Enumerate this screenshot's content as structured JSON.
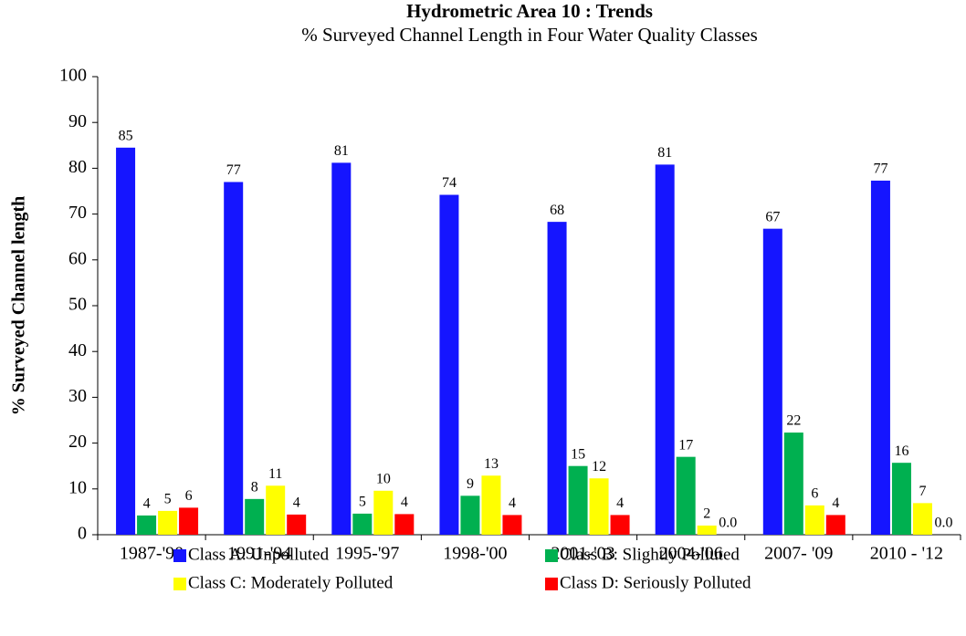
{
  "chart_data": {
    "type": "bar",
    "title": "Hydrometric Area 10 : Trends",
    "subtitle": "% Surveyed Channel Length in Four Water Quality Classes",
    "y_label": "% Surveyed Channel length",
    "categories": [
      "1987-'90",
      "1991-'94",
      "1995-'97",
      "1998-'00",
      "2001-'03",
      "2004-'06",
      "2007- '09",
      "2010 - '12"
    ],
    "series": [
      {
        "name": "Class A: Unpolluted",
        "color": "#1515ff",
        "values": [
          84.5,
          77,
          81.2,
          74.2,
          68.3,
          80.8,
          66.8,
          77.3
        ],
        "value_labels": [
          "85",
          "77",
          "81",
          "74",
          "68",
          "81",
          "67",
          "77"
        ]
      },
      {
        "name": "Class B: Slightly Polluted",
        "color": "#00b050",
        "values": [
          4.2,
          7.8,
          4.6,
          8.5,
          15,
          17,
          22.3,
          15.7
        ],
        "value_labels": [
          "4",
          "8",
          "5",
          "9",
          "15",
          "17",
          "22",
          "16"
        ]
      },
      {
        "name": "Class C: Moderately Polluted",
        "color": "#ffff00",
        "values": [
          5.2,
          10.7,
          9.6,
          12.9,
          12.3,
          2,
          6.4,
          6.9
        ],
        "value_labels": [
          "5",
          "11",
          "10",
          "13",
          "12",
          "2",
          "6",
          "7"
        ]
      },
      {
        "name": "Class D: Seriously Polluted",
        "color": "#ff0000",
        "values": [
          5.9,
          4.4,
          4.5,
          4.3,
          4.3,
          0,
          4.3,
          0
        ],
        "value_labels": [
          "6",
          "4",
          "4",
          "4",
          "4",
          "0.0",
          "4",
          "0.0"
        ]
      }
    ],
    "ylim": [
      0,
      100
    ],
    "yticks": [
      0,
      10,
      20,
      30,
      40,
      50,
      60,
      70,
      80,
      90,
      100
    ],
    "grid": false
  }
}
